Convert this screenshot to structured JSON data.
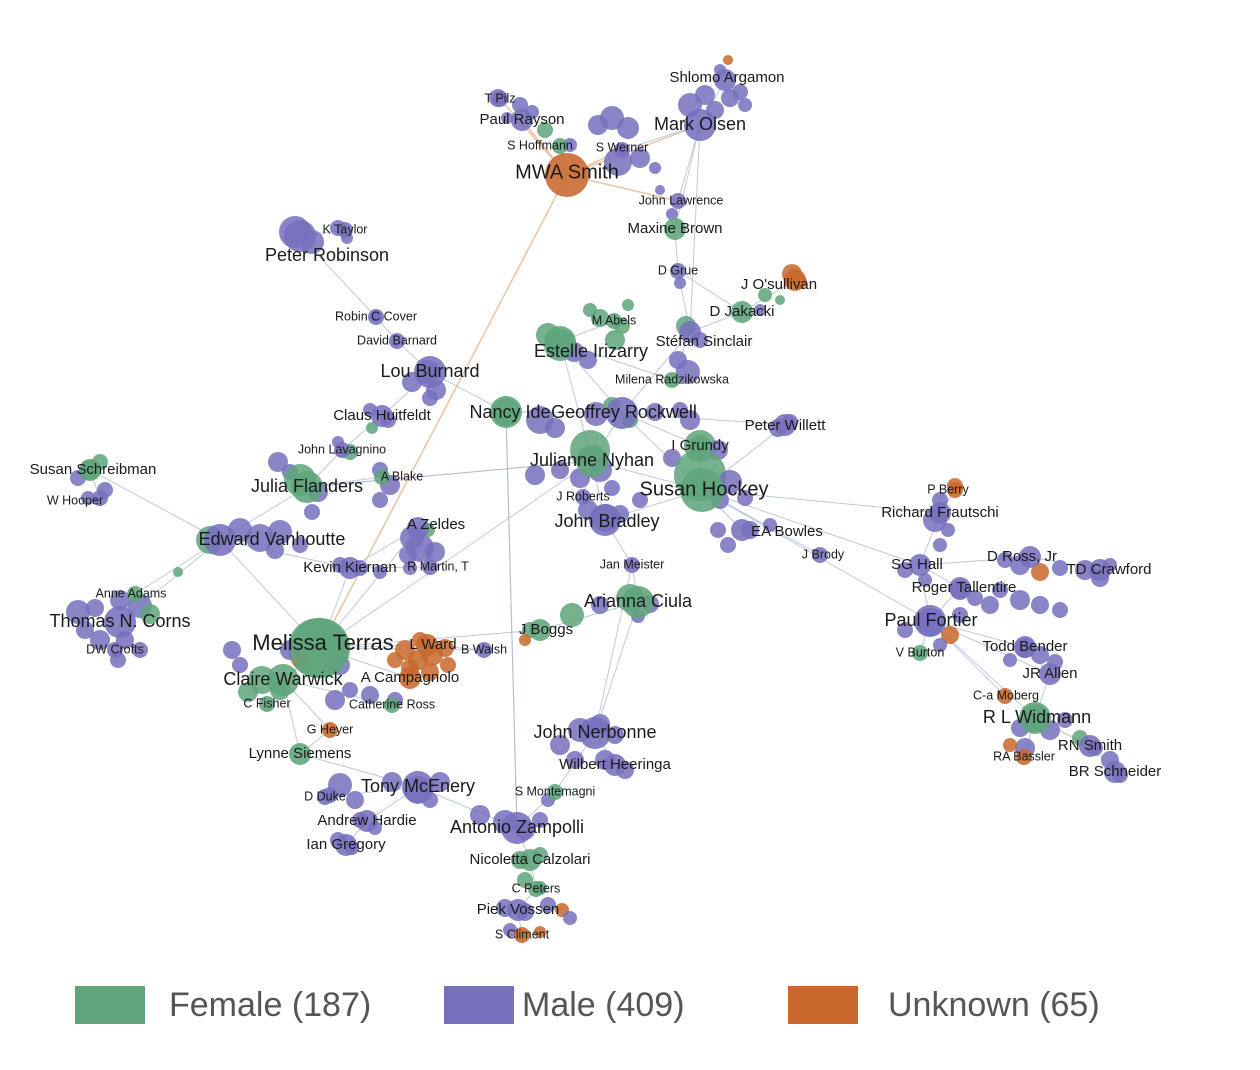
{
  "colors": {
    "female": "#5fa57b",
    "male": "#7670bd",
    "unknown": "#c8682c",
    "edge": "#a9b7cf"
  },
  "legend": {
    "female_label": "Female (187)",
    "male_label": "Male (409)",
    "unknown_label": "Unknown (65)"
  },
  "nodes": [
    {
      "id": "mwa",
      "label": "MWA Smith",
      "gender": "unknown",
      "size": "xl"
    },
    {
      "id": "olsen",
      "label": "Mark Olsen",
      "gender": "male",
      "size": "l"
    },
    {
      "id": "argamon",
      "label": "Shlomo Argamon",
      "gender": "male",
      "size": "m"
    },
    {
      "id": "pilz",
      "label": "T Pilz",
      "gender": "male",
      "size": "s"
    },
    {
      "id": "rayson",
      "label": "Paul Rayson",
      "gender": "male",
      "size": "m"
    },
    {
      "id": "hoffmann",
      "label": "S Hoffmann",
      "gender": "female",
      "size": "s"
    },
    {
      "id": "werner",
      "label": "S Werner",
      "gender": "male",
      "size": "s"
    },
    {
      "id": "lawrence",
      "label": "John Lawrence",
      "gender": "male",
      "size": "s"
    },
    {
      "id": "mbrown",
      "label": "Maxine Brown",
      "gender": "female",
      "size": "m"
    },
    {
      "id": "ktaylor",
      "label": "K Taylor",
      "gender": "male",
      "size": "s"
    },
    {
      "id": "robinson",
      "label": "Peter Robinson",
      "gender": "male",
      "size": "l"
    },
    {
      "id": "grue",
      "label": "D Grue",
      "gender": "male",
      "size": "s"
    },
    {
      "id": "osullivan",
      "label": "J O'sullivan",
      "gender": "unknown",
      "size": "m"
    },
    {
      "id": "jakacki",
      "label": "D Jakacki",
      "gender": "female",
      "size": "m"
    },
    {
      "id": "abels",
      "label": "M Abels",
      "gender": "female",
      "size": "s"
    },
    {
      "id": "cover",
      "label": "Robin C Cover",
      "gender": "male",
      "size": "s"
    },
    {
      "id": "barnard",
      "label": "David Barnard",
      "gender": "male",
      "size": "s"
    },
    {
      "id": "irizarry",
      "label": "Estelle Irizarry",
      "gender": "female",
      "size": "l"
    },
    {
      "id": "sinclair",
      "label": "Stéfan Sinclair",
      "gender": "male",
      "size": "m"
    },
    {
      "id": "burnard",
      "label": "Lou Burnard",
      "gender": "male",
      "size": "l"
    },
    {
      "id": "radz",
      "label": "Milena Radzikowska",
      "gender": "female",
      "size": "s"
    },
    {
      "id": "huitfeldt",
      "label": "Claus Huitfeldt",
      "gender": "male",
      "size": "m"
    },
    {
      "id": "ide",
      "label": "Nancy Ide",
      "gender": "female",
      "size": "l"
    },
    {
      "id": "rockwell",
      "label": "Geoffrey Rockwell",
      "gender": "male",
      "size": "l"
    },
    {
      "id": "willett",
      "label": "Peter Willett",
      "gender": "male",
      "size": "m"
    },
    {
      "id": "lavagnino",
      "label": "John Lavagnino",
      "gender": "male",
      "size": "s"
    },
    {
      "id": "grundy",
      "label": "I Grundy",
      "gender": "female",
      "size": "m"
    },
    {
      "id": "schreibman",
      "label": "Susan Schreibman",
      "gender": "female",
      "size": "m"
    },
    {
      "id": "nyhan",
      "label": "Julianne Nyhan",
      "gender": "female",
      "size": "l"
    },
    {
      "id": "flanders",
      "label": "Julia Flanders",
      "gender": "female",
      "size": "l"
    },
    {
      "id": "blake",
      "label": "A Blake",
      "gender": "female",
      "size": "s"
    },
    {
      "id": "hooper",
      "label": "W Hooper",
      "gender": "male",
      "size": "s"
    },
    {
      "id": "jroberts",
      "label": "J Roberts",
      "gender": "male",
      "size": "s"
    },
    {
      "id": "hockey",
      "label": "Susan Hockey",
      "gender": "female",
      "size": "xl"
    },
    {
      "id": "berry",
      "label": "P Berry",
      "gender": "unknown",
      "size": "s"
    },
    {
      "id": "frautschi",
      "label": "Richard Frautschi",
      "gender": "male",
      "size": "m"
    },
    {
      "id": "zeldes",
      "label": "A Zeldes",
      "gender": "male",
      "size": "m"
    },
    {
      "id": "bradley",
      "label": "John Bradley",
      "gender": "male",
      "size": "l"
    },
    {
      "id": "bowles",
      "label": "EA Bowles",
      "gender": "male",
      "size": "m"
    },
    {
      "id": "vanhoutte",
      "label": "Edward Vanhoutte",
      "gender": "male",
      "size": "l"
    },
    {
      "id": "brody",
      "label": "J Brody",
      "gender": "male",
      "size": "s"
    },
    {
      "id": "sghall",
      "label": "SG Hall",
      "gender": "male",
      "size": "m"
    },
    {
      "id": "dross",
      "label": "D Ross, Jr",
      "gender": "male",
      "size": "m"
    },
    {
      "id": "meister",
      "label": "Jan Meister",
      "gender": "male",
      "size": "s"
    },
    {
      "id": "kiernan",
      "label": "Kevin Kiernan",
      "gender": "male",
      "size": "m"
    },
    {
      "id": "rmartin",
      "label": "R Martin, T",
      "gender": "male",
      "size": "s"
    },
    {
      "id": "tdcrawford",
      "label": "TD Crawford",
      "gender": "male",
      "size": "m"
    },
    {
      "id": "tallentire",
      "label": "Roger Tallentire",
      "gender": "male",
      "size": "m"
    },
    {
      "id": "aadams",
      "label": "Anne Adams",
      "gender": "female",
      "size": "s"
    },
    {
      "id": "ciula",
      "label": "Arianna Ciula",
      "gender": "female",
      "size": "l"
    },
    {
      "id": "corns",
      "label": "Thomas N. Corns",
      "gender": "male",
      "size": "l"
    },
    {
      "id": "fortier",
      "label": "Paul Fortier",
      "gender": "male",
      "size": "l"
    },
    {
      "id": "terras",
      "label": "Melissa Terras",
      "gender": "female",
      "size": "xxl"
    },
    {
      "id": "lward",
      "label": "L Ward",
      "gender": "unknown",
      "size": "m"
    },
    {
      "id": "bwalsh",
      "label": "B Walsh",
      "gender": "male",
      "size": "s"
    },
    {
      "id": "jboggs",
      "label": "J Boggs",
      "gender": "female",
      "size": "m"
    },
    {
      "id": "crofts",
      "label": "DW Crofts",
      "gender": "male",
      "size": "s"
    },
    {
      "id": "burton",
      "label": "V Burton",
      "gender": "female",
      "size": "s"
    },
    {
      "id": "bender",
      "label": "Todd Bender",
      "gender": "male",
      "size": "m"
    },
    {
      "id": "warwick",
      "label": "Claire Warwick",
      "gender": "female",
      "size": "l"
    },
    {
      "id": "campagnolo",
      "label": "A Campagnolo",
      "gender": "unknown",
      "size": "m"
    },
    {
      "id": "jrallen",
      "label": "JR Allen",
      "gender": "male",
      "size": "m"
    },
    {
      "id": "cfisher",
      "label": "C Fisher",
      "gender": "female",
      "size": "s"
    },
    {
      "id": "cross",
      "label": "Catherine Ross",
      "gender": "female",
      "size": "s"
    },
    {
      "id": "moberg",
      "label": "C-a Moberg",
      "gender": "unknown",
      "size": "s"
    },
    {
      "id": "heyer",
      "label": "G Heyer",
      "gender": "unknown",
      "size": "s"
    },
    {
      "id": "widmann",
      "label": "R L Widmann",
      "gender": "female",
      "size": "l"
    },
    {
      "id": "nerbonne",
      "label": "John Nerbonne",
      "gender": "male",
      "size": "l"
    },
    {
      "id": "siemens",
      "label": "Lynne Siemens",
      "gender": "female",
      "size": "m"
    },
    {
      "id": "heeringa",
      "label": "Wilbert Heeringa",
      "gender": "male",
      "size": "m"
    },
    {
      "id": "bassler",
      "label": "RA Bassler",
      "gender": "unknown",
      "size": "s"
    },
    {
      "id": "rnsmith",
      "label": "RN Smith",
      "gender": "male",
      "size": "m"
    },
    {
      "id": "schneider",
      "label": "BR Schneider",
      "gender": "male",
      "size": "m"
    },
    {
      "id": "mcenery",
      "label": "Tony McEnery",
      "gender": "male",
      "size": "l"
    },
    {
      "id": "duke",
      "label": "D Duke",
      "gender": "male",
      "size": "s"
    },
    {
      "id": "montemagni",
      "label": "S Montemagni",
      "gender": "female",
      "size": "s"
    },
    {
      "id": "hardie",
      "label": "Andrew Hardie",
      "gender": "male",
      "size": "m"
    },
    {
      "id": "zampolli",
      "label": "Antonio Zampolli",
      "gender": "male",
      "size": "l"
    },
    {
      "id": "gregory",
      "label": "Ian Gregory",
      "gender": "male",
      "size": "m"
    },
    {
      "id": "calzolari",
      "label": "Nicoletta Calzolari",
      "gender": "female",
      "size": "m"
    },
    {
      "id": "cpeters",
      "label": "C Peters",
      "gender": "female",
      "size": "s"
    },
    {
      "id": "vossen",
      "label": "Piek Vossen",
      "gender": "male",
      "size": "m"
    },
    {
      "id": "climent",
      "label": "S Climent",
      "gender": "unknown",
      "size": "s"
    }
  ],
  "edges": [
    [
      "mwa",
      "olsen"
    ],
    [
      "mwa",
      "rayson"
    ],
    [
      "mwa",
      "hoffmann"
    ],
    [
      "mwa",
      "werner"
    ],
    [
      "mwa",
      "lawrence"
    ],
    [
      "mwa",
      "terras"
    ],
    [
      "mwa",
      "pilz"
    ],
    [
      "olsen",
      "argamon"
    ],
    [
      "olsen",
      "lawrence"
    ],
    [
      "olsen",
      "mbrown"
    ],
    [
      "olsen",
      "sinclair"
    ],
    [
      "olsen",
      "werner"
    ],
    [
      "lawrence",
      "mbrown"
    ],
    [
      "mbrown",
      "grue"
    ],
    [
      "grue",
      "sinclair"
    ],
    [
      "grue",
      "jakacki"
    ],
    [
      "jakacki",
      "osullivan"
    ],
    [
      "jakacki",
      "sinclair"
    ],
    [
      "sinclair",
      "rockwell"
    ],
    [
      "sinclair",
      "radz"
    ],
    [
      "radz",
      "irizarry"
    ],
    [
      "irizarry",
      "abels"
    ],
    [
      "irizarry",
      "rockwell"
    ],
    [
      "irizarry",
      "nyhan"
    ],
    [
      "rockwell",
      "ide"
    ],
    [
      "rockwell",
      "hockey"
    ],
    [
      "rockwell",
      "nyhan"
    ],
    [
      "rockwell",
      "grundy"
    ],
    [
      "rockwell",
      "willett"
    ],
    [
      "robinson",
      "ktaylor"
    ],
    [
      "robinson",
      "cover"
    ],
    [
      "cover",
      "barnard"
    ],
    [
      "barnard",
      "burnard"
    ],
    [
      "burnard",
      "ide"
    ],
    [
      "burnard",
      "huitfeldt"
    ],
    [
      "huitfeldt",
      "lavagnino"
    ],
    [
      "lavagnino",
      "flanders"
    ],
    [
      "flanders",
      "blake"
    ],
    [
      "flanders",
      "nyhan"
    ],
    [
      "flanders",
      "vanhoutte"
    ],
    [
      "ide",
      "zampolli"
    ],
    [
      "nyhan",
      "hockey"
    ],
    [
      "nyhan",
      "jroberts"
    ],
    [
      "nyhan",
      "bradley"
    ],
    [
      "nyhan",
      "terras"
    ],
    [
      "nyhan",
      "flanders"
    ],
    [
      "hockey",
      "bradley"
    ],
    [
      "hockey",
      "bowles"
    ],
    [
      "hockey",
      "brody"
    ],
    [
      "hockey",
      "sghall"
    ],
    [
      "hockey",
      "fortier"
    ],
    [
      "hockey",
      "frautschi"
    ],
    [
      "hockey",
      "grundy"
    ],
    [
      "hockey",
      "willett"
    ],
    [
      "frautschi",
      "berry"
    ],
    [
      "frautschi",
      "sghall"
    ],
    [
      "sghall",
      "dross"
    ],
    [
      "sghall",
      "tallentire"
    ],
    [
      "sghall",
      "fortier"
    ],
    [
      "dross",
      "tdcrawford"
    ],
    [
      "fortier",
      "tallentire"
    ],
    [
      "fortier",
      "burton"
    ],
    [
      "fortier",
      "bender"
    ],
    [
      "fortier",
      "jrallen"
    ],
    [
      "fortier",
      "widmann"
    ],
    [
      "fortier",
      "moberg"
    ],
    [
      "widmann",
      "bassler"
    ],
    [
      "widmann",
      "rnsmith"
    ],
    [
      "widmann",
      "jrallen"
    ],
    [
      "rnsmith",
      "schneider"
    ],
    [
      "bender",
      "jrallen"
    ],
    [
      "schreibman",
      "hooper"
    ],
    [
      "schreibman",
      "vanhoutte"
    ],
    [
      "vanhoutte",
      "corns"
    ],
    [
      "vanhoutte",
      "terras"
    ],
    [
      "vanhoutte",
      "kiernan"
    ],
    [
      "vanhoutte",
      "aadams"
    ],
    [
      "corns",
      "crofts"
    ],
    [
      "corns",
      "aadams"
    ],
    [
      "kiernan",
      "rmartin"
    ],
    [
      "kiernan",
      "zeldes"
    ],
    [
      "zeldes",
      "terras"
    ],
    [
      "terras",
      "warwick"
    ],
    [
      "terras",
      "lward"
    ],
    [
      "terras",
      "campagnolo"
    ],
    [
      "terras",
      "kiernan"
    ],
    [
      "terras",
      "bwalsh"
    ],
    [
      "terras",
      "jboggs"
    ],
    [
      "lward",
      "bwalsh"
    ],
    [
      "lward",
      "campagnolo"
    ],
    [
      "jboggs",
      "ciula"
    ],
    [
      "ciula",
      "meister"
    ],
    [
      "meister",
      "bradley"
    ],
    [
      "ciula",
      "nerbonne"
    ],
    [
      "warwick",
      "cfisher"
    ],
    [
      "warwick",
      "siemens"
    ],
    [
      "warwick",
      "cross"
    ],
    [
      "warwick",
      "heyer"
    ],
    [
      "siemens",
      "mcenery"
    ],
    [
      "siemens",
      "heyer"
    ],
    [
      "mcenery",
      "duke"
    ],
    [
      "mcenery",
      "hardie"
    ],
    [
      "hardie",
      "gregory"
    ],
    [
      "mcenery",
      "zampolli"
    ],
    [
      "nerbonne",
      "heeringa"
    ],
    [
      "nerbonne",
      "montemagni"
    ],
    [
      "montemagni",
      "zampolli"
    ],
    [
      "zampolli",
      "calzolari"
    ],
    [
      "calzolari",
      "cpeters"
    ],
    [
      "cpeters",
      "vossen"
    ],
    [
      "vossen",
      "climent"
    ],
    [
      "zampolli",
      "ide"
    ],
    [
      "meister",
      "nerbonne"
    ]
  ]
}
